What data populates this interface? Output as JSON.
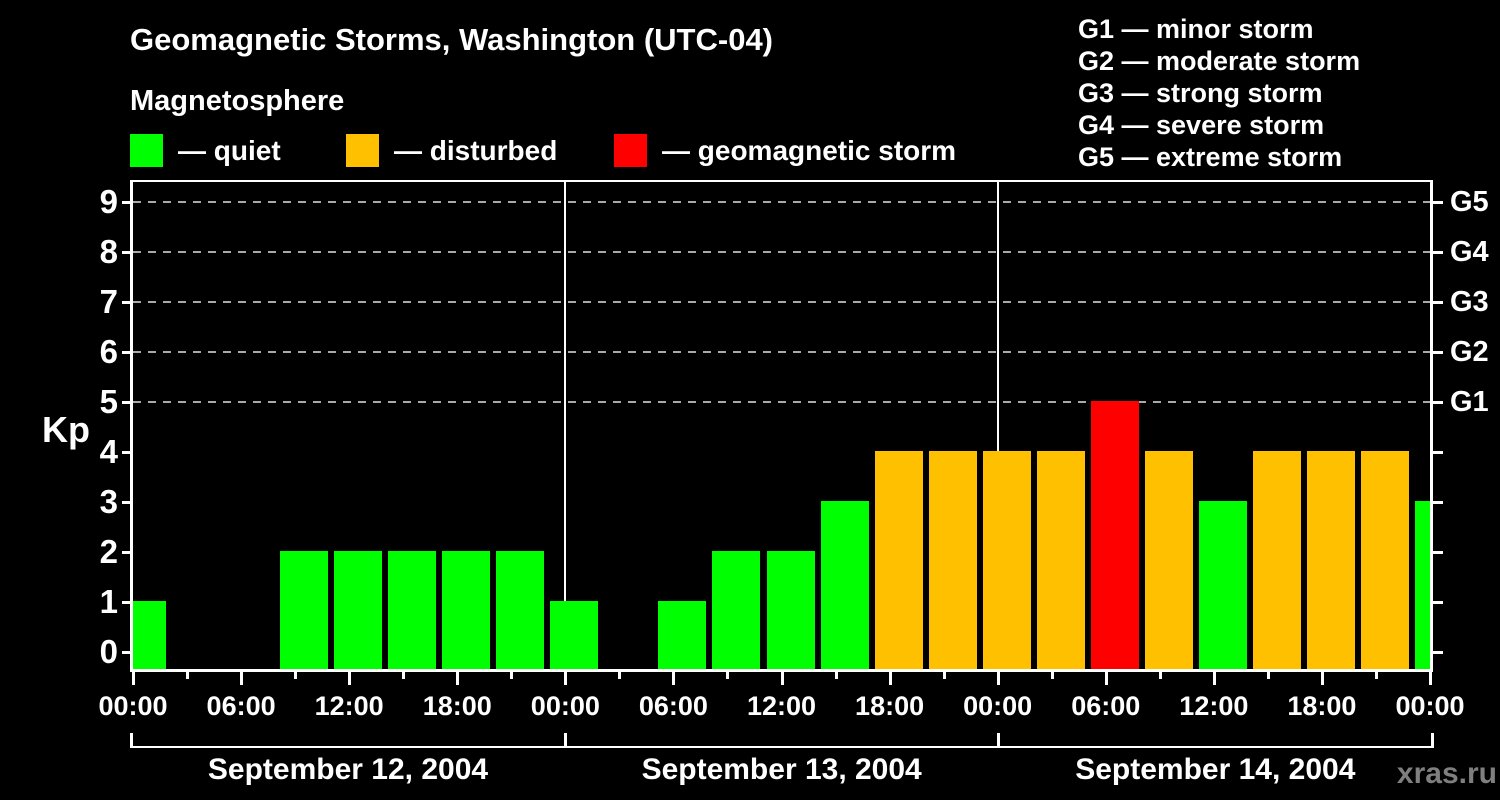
{
  "title": "Geomagnetic Storms, Washington (UTC-04)",
  "subtitle": "Magnetosphere",
  "watermark": "xras.ru",
  "colors": {
    "quiet": "#00FF00",
    "disturbed": "#FFC000",
    "storm": "#FF0000",
    "grid": "#A9A9A9",
    "watermark": "#7F7F7F",
    "axis": "#FFFFFF",
    "background": "#000000"
  },
  "legend": {
    "items": [
      {
        "name": "quiet",
        "label": "— quiet",
        "color": "#00FF00"
      },
      {
        "name": "disturbed",
        "label": "— disturbed",
        "color": "#FFC000"
      },
      {
        "name": "geomagnetic-storm",
        "label": "— geomagnetic storm",
        "color": "#FF0000"
      }
    ]
  },
  "g_legend": {
    "items": [
      "G1 — minor storm",
      "G2 — moderate storm",
      "G3 — strong storm",
      "G4 — severe storm",
      "G5 — extreme storm"
    ]
  },
  "chart_data": {
    "type": "bar",
    "title": "Geomagnetic Storms, Washington (UTC-04)",
    "ylabel": "Kp",
    "ylim": [
      0,
      9
    ],
    "y_ticks": [
      0,
      1,
      2,
      3,
      4,
      5,
      6,
      7,
      8,
      9
    ],
    "gridlines_kp": [
      5,
      6,
      7,
      8,
      9
    ],
    "grid": "dashed, storm levels only",
    "legend_position": "top-left and top-right",
    "right_axis_labels": [
      {
        "label": "G5",
        "kp": 9
      },
      {
        "label": "G4",
        "kp": 8
      },
      {
        "label": "G3",
        "kp": 7
      },
      {
        "label": "G2",
        "kp": 6
      },
      {
        "label": "G1",
        "kp": 5
      }
    ],
    "interval_hours": 3,
    "time_tick_labels": [
      "00:00",
      "06:00",
      "12:00",
      "18:00",
      "00:00",
      "06:00",
      "12:00",
      "18:00",
      "00:00",
      "06:00",
      "12:00",
      "18:00",
      "00:00"
    ],
    "days": [
      {
        "date": "September 12, 2004",
        "values": [
          1,
          0,
          0,
          2,
          2,
          2,
          2,
          2
        ]
      },
      {
        "date": "September 13, 2004",
        "values": [
          1,
          0,
          1,
          2,
          2,
          3,
          4,
          4
        ]
      },
      {
        "date": "September 14, 2004",
        "values": [
          4,
          4,
          5,
          4,
          3,
          4,
          4,
          4
        ]
      }
    ],
    "trailing_kp": 3,
    "color_rule": {
      "quiet_green": "kp <= 3",
      "disturbed_orange": "kp == 4",
      "storm_red": "kp >= 5"
    }
  }
}
